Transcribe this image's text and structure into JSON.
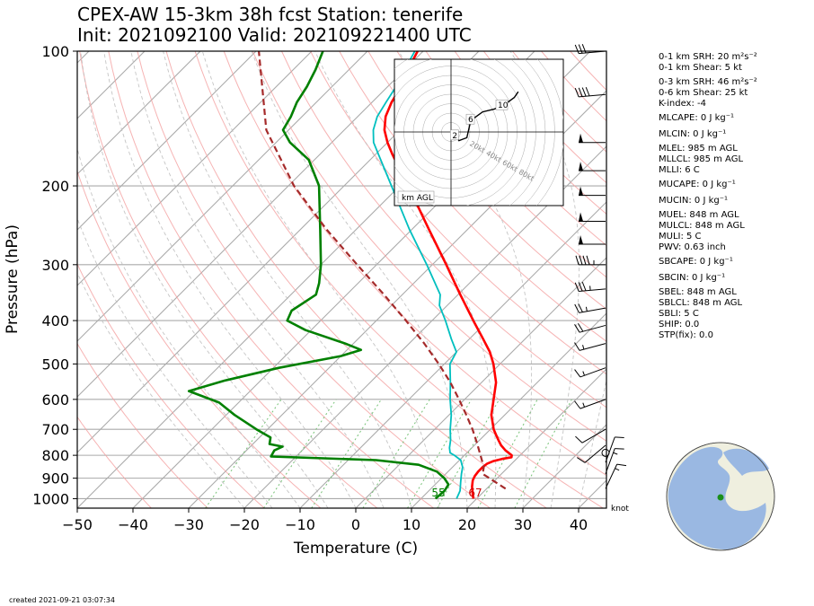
{
  "title_line1": "CPEX-AW 15-3km  38h fcst  Station: tenerife",
  "title_line2": "Init: 2021092100  Valid: 2021092214​00 UTC",
  "created": "created 2021-09-21 03:07:34",
  "indices": [
    "0-1 km SRH: 20 m²s⁻²",
    "0-1 km Shear: 5 kt",
    "0-3 km SRH: 46 m²s⁻²",
    "0-6 km Shear: 25 kt",
    "K-index: -4",
    "MLCAPE: 0 J kg⁻¹",
    "MLCIN: 0 J kg⁻¹",
    "MLEL: 985 m AGL",
    "MLLCL: 985 m AGL",
    "MLLI: 6 C",
    "MUCAPE: 0 J kg⁻¹",
    "MUCIN: 0 J kg⁻¹",
    "MUEL: 848 m AGL",
    "MULCL: 848 m AGL",
    "MULI: 5 C",
    "PWV: 0.63 inch",
    "SBCAPE: 0 J kg⁻¹",
    "SBCIN: 0 J kg⁻¹",
    "SBEL: 848 m AGL",
    "SBLCL: 848 m AGL",
    "SBLI: 5 C",
    "SHIP: 0.0",
    "STP(fix): 0.0"
  ],
  "hodograph": {
    "ring_labels": [
      "20kt",
      "40kt",
      "60kt",
      "80kt"
    ],
    "height_labels": [
      "2",
      "6",
      "10"
    ],
    "legend": "km AGL"
  },
  "knot_label": "knot",
  "surface_labels": {
    "dewpoint": "55",
    "temperature": "67"
  },
  "chart_data": {
    "type": "line",
    "title": "CPEX-AW 15-3km  38h fcst  Station: tenerife",
    "xlabel": "Temperature (C)",
    "ylabel": "Pressure (hPa)",
    "xlim": [
      -50,
      45
    ],
    "ylim": [
      1000,
      100
    ],
    "y_scale": "log",
    "skew_deg": 45,
    "x_ticks": [
      "−50",
      "−40",
      "−30",
      "−20",
      "−10",
      "0",
      "10",
      "20",
      "30",
      "40"
    ],
    "y_ticks": [
      "100",
      "200",
      "300",
      "400",
      "500",
      "600",
      "700",
      "800",
      "900",
      "1000"
    ],
    "grid": true,
    "colors": {
      "temperature": "#ff0000",
      "dewpoint": "#008000",
      "virtual_temperature": "#00bfbf",
      "parcel": "#a52a2a",
      "dry_adiabat": "#f4a0a0",
      "moist_adiabat": "#bbbbbb",
      "mixing_ratio": "#77c277",
      "isotherm": "#aaaaaa"
    },
    "series": [
      {
        "key": "temperature",
        "points": [
          [
            1000,
            19.4
          ],
          [
            970,
            18.2
          ],
          [
            940,
            17.0
          ],
          [
            910,
            16.0
          ],
          [
            890,
            15.6
          ],
          [
            870,
            15.4
          ],
          [
            850,
            15.4
          ],
          [
            835,
            15.6
          ],
          [
            825,
            16.2
          ],
          [
            815,
            17.4
          ],
          [
            808,
            18.8
          ],
          [
            800,
            18.5
          ],
          [
            780,
            16.5
          ],
          [
            760,
            14.8
          ],
          [
            740,
            13.4
          ],
          [
            720,
            12.0
          ],
          [
            700,
            10.6
          ],
          [
            650,
            7.6
          ],
          [
            600,
            5.2
          ],
          [
            550,
            2.6
          ],
          [
            500,
            -1.2
          ],
          [
            470,
            -4.0
          ],
          [
            440,
            -7.5
          ],
          [
            400,
            -12.6
          ],
          [
            350,
            -19.6
          ],
          [
            300,
            -27.5
          ],
          [
            250,
            -37.0
          ],
          [
            200,
            -48.5
          ],
          [
            170,
            -57.0
          ],
          [
            160,
            -60.0
          ],
          [
            150,
            -62.8
          ],
          [
            140,
            -65.0
          ],
          [
            130,
            -66.5
          ],
          [
            120,
            -67.6
          ],
          [
            110,
            -69.4
          ],
          [
            100,
            -71.0
          ]
        ]
      },
      {
        "key": "virtual_temperature",
        "points": [
          [
            1000,
            16.4
          ],
          [
            960,
            15.6
          ],
          [
            920,
            14.2
          ],
          [
            880,
            12.8
          ],
          [
            850,
            11.8
          ],
          [
            820,
            10.2
          ],
          [
            800,
            8.2
          ],
          [
            790,
            7.0
          ],
          [
            770,
            6.0
          ],
          [
            740,
            4.8
          ],
          [
            700,
            2.8
          ],
          [
            650,
            0.4
          ],
          [
            600,
            -2.6
          ],
          [
            550,
            -5.6
          ],
          [
            500,
            -9.0
          ],
          [
            470,
            -10.0
          ],
          [
            440,
            -13.2
          ],
          [
            400,
            -17.6
          ],
          [
            370,
            -21.4
          ],
          [
            350,
            -23.2
          ],
          [
            300,
            -31.0
          ],
          [
            250,
            -40.5
          ],
          [
            200,
            -51.5
          ],
          [
            170,
            -59.5
          ],
          [
            160,
            -62.5
          ],
          [
            150,
            -64.8
          ],
          [
            140,
            -66.5
          ],
          [
            130,
            -67.5
          ],
          [
            120,
            -68.5
          ],
          [
            110,
            -70.0
          ],
          [
            100,
            -71.5
          ]
        ]
      },
      {
        "key": "dewpoint",
        "points": [
          [
            1000,
            12.6
          ],
          [
            960,
            12.8
          ],
          [
            930,
            12.4
          ],
          [
            900,
            10.5
          ],
          [
            870,
            8.0
          ],
          [
            840,
            3.5
          ],
          [
            820,
            -5.0
          ],
          [
            805,
            -24.5
          ],
          [
            780,
            -25.0
          ],
          [
            765,
            -24.2
          ],
          [
            755,
            -27.0
          ],
          [
            730,
            -28.0
          ],
          [
            700,
            -32.0
          ],
          [
            650,
            -38.5
          ],
          [
            610,
            -43.5
          ],
          [
            575,
            -51.0
          ],
          [
            545,
            -46.5
          ],
          [
            510,
            -39.0
          ],
          [
            480,
            -30.0
          ],
          [
            465,
            -27.5
          ],
          [
            450,
            -31.5
          ],
          [
            420,
            -41.0
          ],
          [
            400,
            -46.0
          ],
          [
            380,
            -47.0
          ],
          [
            350,
            -45.5
          ],
          [
            330,
            -47.0
          ],
          [
            300,
            -50.0
          ],
          [
            250,
            -56.5
          ],
          [
            200,
            -64.5
          ],
          [
            175,
            -71.0
          ],
          [
            160,
            -77.5
          ],
          [
            150,
            -81.0
          ],
          [
            140,
            -82.0
          ],
          [
            130,
            -83.5
          ],
          [
            120,
            -84.5
          ],
          [
            110,
            -86.0
          ],
          [
            100,
            -88.0
          ]
        ]
      },
      {
        "key": "parcel",
        "points": [
          [
            950,
            23.4
          ],
          [
            880,
            16.6
          ],
          [
            850,
            15.6
          ],
          [
            800,
            12.9
          ],
          [
            750,
            10.0
          ],
          [
            700,
            6.8
          ],
          [
            650,
            3.1
          ],
          [
            600,
            -1.0
          ],
          [
            550,
            -5.6
          ],
          [
            500,
            -11.0
          ],
          [
            450,
            -17.3
          ],
          [
            400,
            -24.7
          ],
          [
            350,
            -33.3
          ],
          [
            300,
            -43.5
          ],
          [
            250,
            -55.4
          ],
          [
            200,
            -69.0
          ],
          [
            150,
            -84.0
          ],
          [
            100,
            -99.5
          ]
        ]
      }
    ],
    "hodograph": {
      "points_kt": [
        [
          0,
          0
        ],
        [
          2,
          -3
        ],
        [
          3,
          -4
        ],
        [
          4,
          -6
        ],
        [
          6,
          -5
        ],
        [
          8,
          -4
        ],
        [
          10,
          8
        ],
        [
          14,
          12
        ],
        [
          16,
          14
        ],
        [
          22,
          16
        ],
        [
          25,
          18
        ],
        [
          28,
          20
        ],
        [
          30,
          22
        ],
        [
          32,
          24
        ],
        [
          34,
          28
        ]
      ],
      "labels_at": {
        "2": [
          2,
          -3
        ],
        "6": [
          10,
          8
        ],
        "10": [
          25,
          18
        ]
      }
    },
    "wind_barbs": [
      {
        "p": 100,
        "spd": 30,
        "dir": 265
      },
      {
        "p": 125,
        "spd": 40,
        "dir": 265
      },
      {
        "p": 160,
        "spd": 50,
        "dir": 270
      },
      {
        "p": 185,
        "spd": 50,
        "dir": 270
      },
      {
        "p": 210,
        "spd": 50,
        "dir": 270
      },
      {
        "p": 240,
        "spd": 50,
        "dir": 270
      },
      {
        "p": 270,
        "spd": 50,
        "dir": 270
      },
      {
        "p": 300,
        "spd": 45,
        "dir": 270
      },
      {
        "p": 340,
        "spd": 35,
        "dir": 265
      },
      {
        "p": 375,
        "spd": 25,
        "dir": 260
      },
      {
        "p": 410,
        "spd": 20,
        "dir": 255
      },
      {
        "p": 450,
        "spd": 15,
        "dir": 255
      },
      {
        "p": 510,
        "spd": 15,
        "dir": 250
      },
      {
        "p": 600,
        "spd": 15,
        "dir": 250
      },
      {
        "p": 700,
        "spd": 10,
        "dir": 240
      },
      {
        "p": 760,
        "spd": 10,
        "dir": 230
      },
      {
        "p": 790,
        "spd": 0,
        "dir": 0
      },
      {
        "p": 830,
        "spd": 10,
        "dir": 20
      },
      {
        "p": 880,
        "spd": 15,
        "dir": 20
      },
      {
        "p": 950,
        "spd": 15,
        "dir": 25
      }
    ]
  }
}
